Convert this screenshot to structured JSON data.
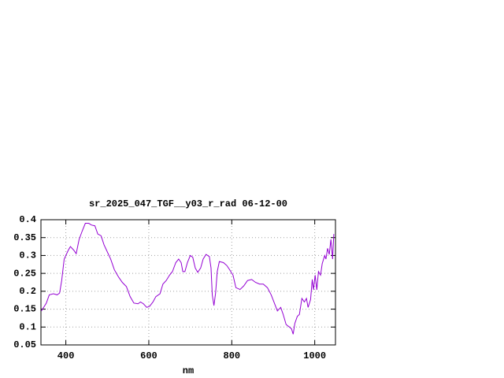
{
  "chart_data": {
    "type": "line",
    "title": "sr_2025_047_TGF__y03_r_rad 06-12-00",
    "x_label": "nm",
    "xlim": [
      340,
      1050
    ],
    "ylim": [
      0.05,
      0.4
    ],
    "xticks": [
      400,
      600,
      800,
      1000
    ],
    "yticks": [
      0.05,
      0.1,
      0.15,
      0.2,
      0.25,
      0.3,
      0.35,
      0.4
    ],
    "grid": true,
    "series": [
      {
        "color": "#9400d3",
        "x": [
          341,
          353,
          360,
          370,
          379,
          385,
          390,
          396,
          406,
          411,
          419,
          425,
          432,
          440,
          447,
          455,
          462,
          470,
          477,
          485,
          492,
          500,
          508,
          517,
          527,
          536,
          546,
          555,
          564,
          574,
          580,
          587,
          595,
          602,
          610,
          617,
          627,
          634,
          642,
          650,
          657,
          665,
          672,
          678,
          682,
          687,
          693,
          700,
          706,
          712,
          718,
          725,
          731,
          738,
          746,
          750,
          753,
          757,
          761,
          765,
          770,
          780,
          788,
          795,
          803,
          810,
          820,
          829,
          838,
          848,
          857,
          867,
          876,
          886,
          895,
          905,
          910,
          918,
          924,
          931,
          939,
          944,
          948,
          952,
          958,
          963,
          969,
          975,
          980,
          984,
          990,
          994,
          997,
          1001,
          1005,
          1009,
          1014,
          1018,
          1024,
          1027,
          1031,
          1035,
          1039,
          1043,
          1046
        ],
        "values": [
          0.145,
          0.167,
          0.19,
          0.193,
          0.19,
          0.195,
          0.23,
          0.29,
          0.315,
          0.325,
          0.315,
          0.305,
          0.345,
          0.37,
          0.39,
          0.39,
          0.385,
          0.383,
          0.36,
          0.355,
          0.33,
          0.31,
          0.29,
          0.26,
          0.24,
          0.225,
          0.213,
          0.185,
          0.167,
          0.165,
          0.17,
          0.165,
          0.155,
          0.158,
          0.17,
          0.185,
          0.193,
          0.22,
          0.23,
          0.245,
          0.255,
          0.28,
          0.29,
          0.28,
          0.255,
          0.255,
          0.28,
          0.3,
          0.295,
          0.265,
          0.253,
          0.265,
          0.29,
          0.303,
          0.297,
          0.265,
          0.19,
          0.16,
          0.195,
          0.255,
          0.283,
          0.28,
          0.272,
          0.26,
          0.245,
          0.21,
          0.205,
          0.215,
          0.23,
          0.233,
          0.225,
          0.22,
          0.22,
          0.21,
          0.19,
          0.16,
          0.145,
          0.155,
          0.135,
          0.107,
          0.1,
          0.095,
          0.08,
          0.11,
          0.13,
          0.135,
          0.18,
          0.17,
          0.18,
          0.155,
          0.177,
          0.233,
          0.204,
          0.245,
          0.204,
          0.255,
          0.245,
          0.277,
          0.3,
          0.29,
          0.32,
          0.303,
          0.345,
          0.29,
          0.36
        ]
      }
    ]
  }
}
